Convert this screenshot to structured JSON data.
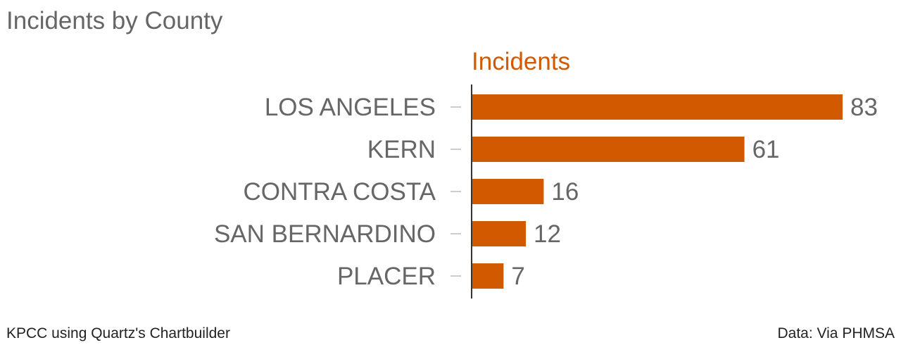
{
  "colors": {
    "bar": "#d15a00",
    "text": "#666666",
    "axis": "#333333",
    "tick": "#cccccc",
    "footer": "#222222"
  },
  "footer": {
    "credit": "KPCC using Quartz's Chartbuilder",
    "source": "Data: Via PHMSA"
  },
  "chart_data": {
    "type": "bar",
    "orientation": "horizontal",
    "title": "Incidents by County",
    "categories": [
      "LOS ANGELES",
      "KERN",
      "CONTRA COSTA",
      "SAN BERNARDINO",
      "PLACER"
    ],
    "series": [
      {
        "name": "Incidents",
        "values": [
          83,
          61,
          16,
          12,
          7
        ]
      }
    ],
    "xlim": [
      0,
      83
    ],
    "grid": false,
    "data_labels": true
  }
}
